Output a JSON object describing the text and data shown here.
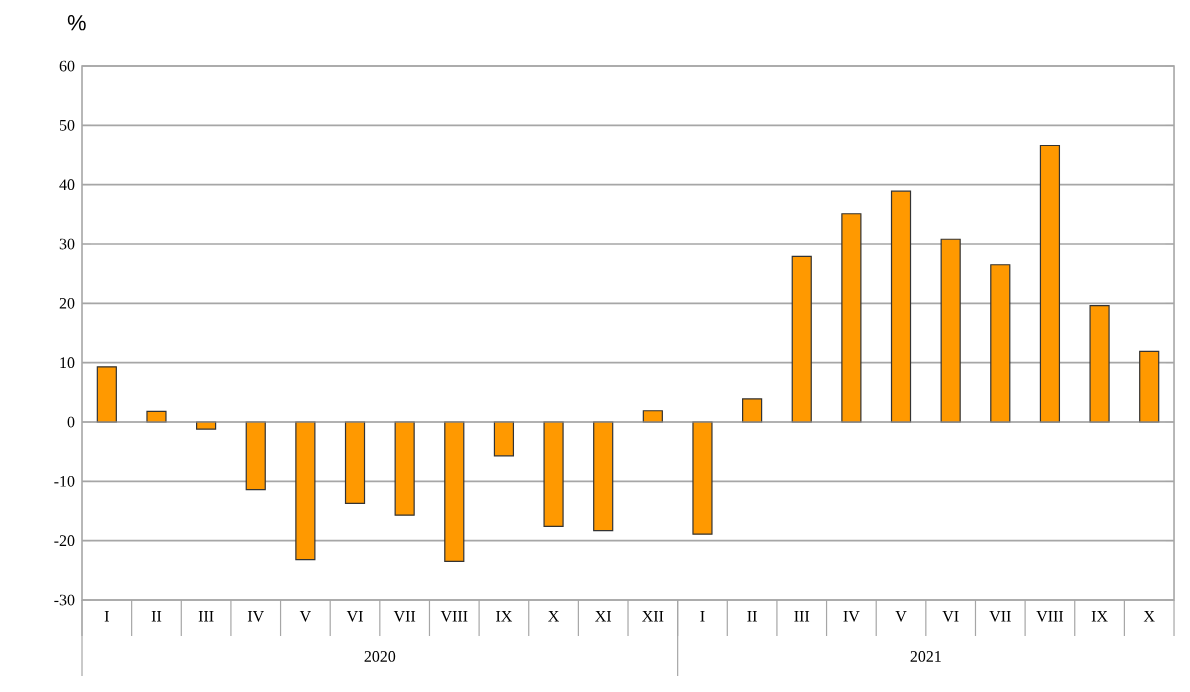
{
  "chart_data": {
    "type": "bar",
    "ylabel": "%",
    "categories": [
      "I",
      "II",
      "III",
      "IV",
      "V",
      "VI",
      "VII",
      "VIII",
      "IX",
      "X",
      "XI",
      "XII",
      "I",
      "II",
      "III",
      "IV",
      "V",
      "VI",
      "VII",
      "VIII",
      "IX",
      "X"
    ],
    "values": [
      9.3,
      1.8,
      -1.2,
      -11.4,
      -23.2,
      -13.7,
      -15.7,
      -23.5,
      -5.7,
      -17.6,
      -18.3,
      1.9,
      -18.9,
      3.9,
      27.9,
      35.1,
      38.9,
      30.8,
      26.5,
      46.6,
      19.6,
      11.9
    ],
    "color": "#ff9900",
    "ylim": [
      -30,
      60
    ],
    "yticks": [
      -30,
      -20,
      -10,
      0,
      10,
      20,
      30,
      40,
      50,
      60
    ],
    "grid": "y",
    "annotations": [
      "2020",
      "2021"
    ]
  }
}
